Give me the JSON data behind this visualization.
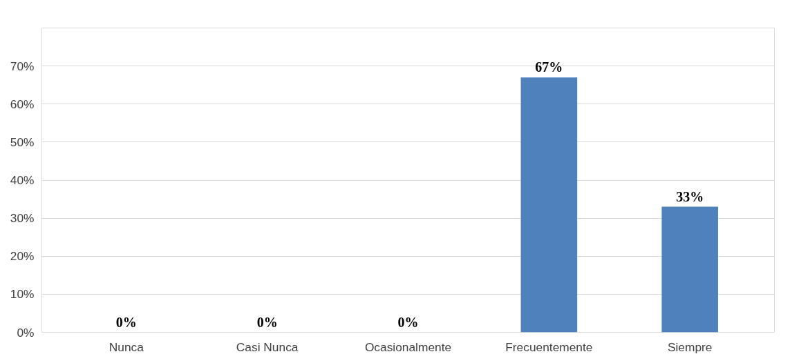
{
  "chart_data": {
    "type": "bar",
    "categories": [
      "Nunca",
      "Casi Nunca",
      "Ocasionalmente",
      "Frecuentemente",
      "Siempre"
    ],
    "values": [
      0,
      0,
      0,
      67,
      33
    ],
    "value_labels": [
      "0%",
      "0%",
      "0%",
      "67%",
      "33%"
    ],
    "color": "#4f81bd",
    "ylim": [
      0,
      80
    ],
    "yticks": [
      {
        "value": 0,
        "label": "0%"
      },
      {
        "value": 10,
        "label": "10%"
      },
      {
        "value": 20,
        "label": "20%"
      },
      {
        "value": 30,
        "label": "30%"
      },
      {
        "value": 40,
        "label": "40%"
      },
      {
        "value": 50,
        "label": "50%"
      },
      {
        "value": 60,
        "label": "60%"
      },
      {
        "value": 70,
        "label": "70%"
      },
      {
        "value": 80,
        "label": null
      }
    ],
    "grid": "y"
  }
}
